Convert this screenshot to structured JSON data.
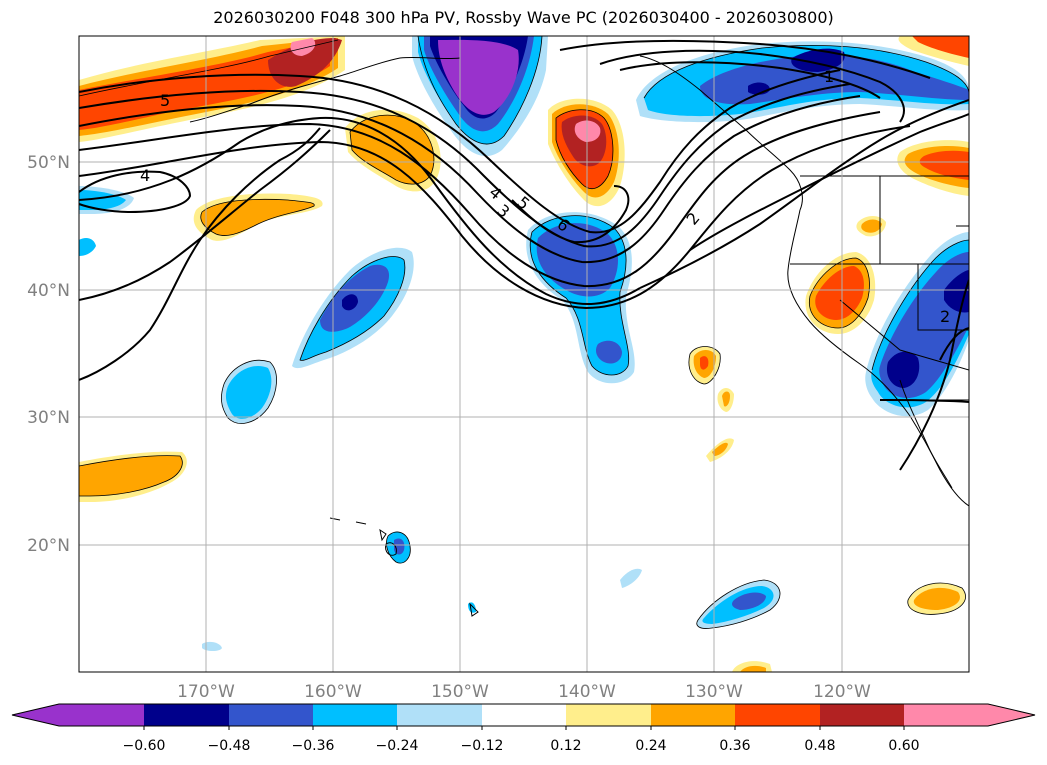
{
  "title": "2026030200 F048 300 hPa PV, Rossby Wave PC (2026030400 - 2026030800)",
  "axes": {
    "lon_labels": [
      "170°W",
      "160°W",
      "150°W",
      "140°W",
      "130°W",
      "120°W"
    ],
    "lat_labels": [
      "50°N",
      "40°N",
      "30°N",
      "20°N"
    ]
  },
  "contour_labels": [
    "5",
    "4",
    "4",
    "3",
    "5",
    "6",
    "2",
    "1",
    "2"
  ],
  "colorbar": {
    "colors": [
      "#9932cc",
      "#00008b",
      "#3355cc",
      "#00bfff",
      "#b0e0f8",
      "#ffffff",
      "#ffee8c",
      "#ffa500",
      "#ff4500",
      "#b22222",
      "#ff88aa"
    ],
    "tick_labels": [
      "−0.60",
      "−0.48",
      "−0.36",
      "−0.24",
      "−0.12",
      "0.12",
      "0.24",
      "0.36",
      "0.48",
      "0.60"
    ]
  },
  "colors": {
    "axis_label": "#808080",
    "contour": "#000000",
    "grid": "#b0b0b0"
  }
}
